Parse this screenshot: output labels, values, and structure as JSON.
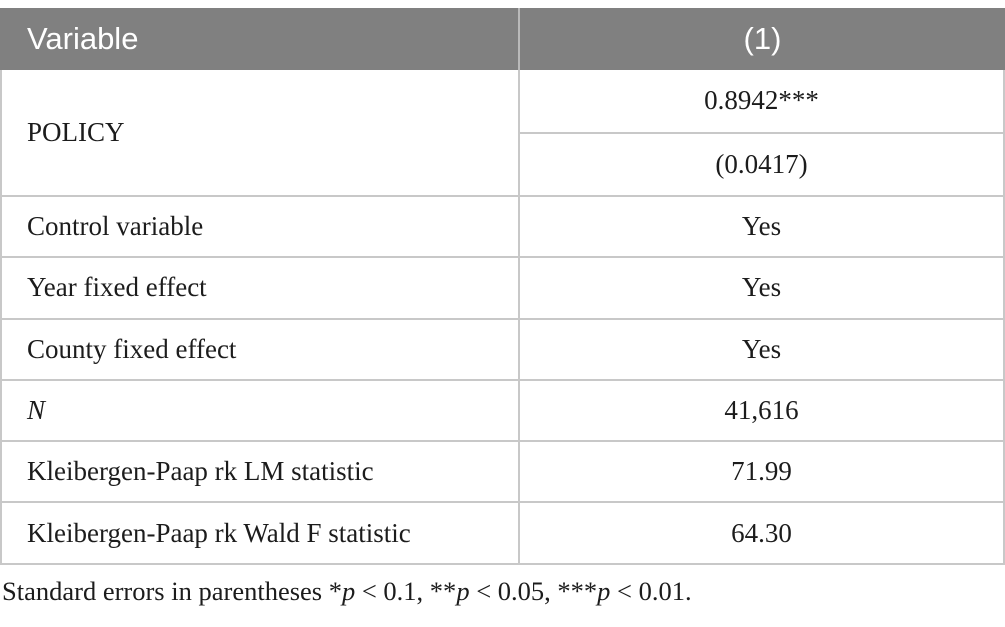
{
  "table": {
    "header": {
      "variable_label": "Variable",
      "column1_label": "(1)"
    },
    "policy": {
      "label": "POLICY",
      "coefficient": "0.8942***",
      "std_error": "(0.0417)"
    },
    "rows": [
      {
        "label": "Control variable",
        "value": "Yes"
      },
      {
        "label": "Year fixed effect",
        "value": "Yes"
      },
      {
        "label": "County fixed effect",
        "value": "Yes"
      },
      {
        "label": "N",
        "value": "41,616"
      },
      {
        "label": "Kleibergen-Paap rk LM statistic",
        "value": "71.99"
      },
      {
        "label": "Kleibergen-Paap rk Wald F statistic",
        "value": "64.30"
      }
    ]
  },
  "footnote": {
    "prefix": "Standard errors in parentheses *",
    "p1": "p",
    "seg1": " < 0.1, **",
    "p2": "p",
    "seg2": " < 0.05, ***",
    "p3": "p",
    "seg3": " < 0.01."
  },
  "colors": {
    "header_bg": "#808080",
    "header_text": "#ffffff",
    "grid_border": "#c8c8c8",
    "body_text": "#1c1c1c"
  }
}
